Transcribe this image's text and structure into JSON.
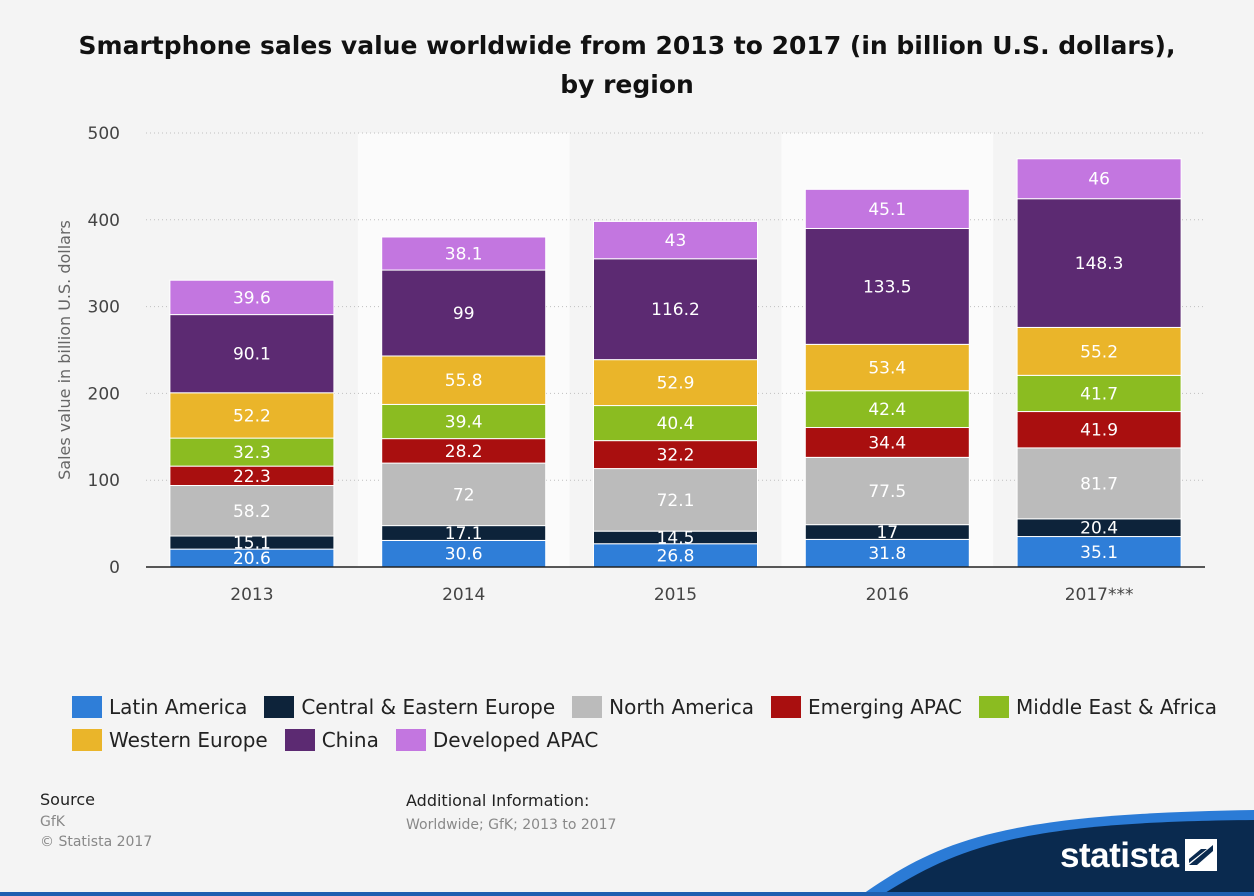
{
  "chart_data": {
    "type": "bar",
    "stacked": true,
    "title": "Smartphone sales value worldwide from 2013 to 2017 (in billion U.S. dollars), by region",
    "xlabel": "",
    "ylabel": "Sales value in billion U.S. dollars",
    "ylim": [
      0,
      500
    ],
    "yticks": [
      0,
      100,
      200,
      300,
      400,
      500
    ],
    "grid": true,
    "legend_position": "bottom",
    "categories": [
      "2013",
      "2014",
      "2015",
      "2016",
      "2017***"
    ],
    "series": [
      {
        "name": "Latin America",
        "color": "#2f7ed8",
        "values": [
          20.6,
          30.6,
          26.8,
          31.8,
          35.1
        ]
      },
      {
        "name": "Central & Eastern Europe",
        "color": "#0d233a",
        "values": [
          15.1,
          17.1,
          14.5,
          17,
          20.4
        ]
      },
      {
        "name": "North America",
        "color": "#bbbbbb",
        "values": [
          58.2,
          72,
          72.1,
          77.5,
          81.7
        ]
      },
      {
        "name": "Emerging APAC",
        "color": "#a90f0f",
        "values": [
          22.3,
          28.2,
          32.2,
          34.4,
          41.9
        ]
      },
      {
        "name": "Middle East & Africa",
        "color": "#8bbc21",
        "values": [
          32.3,
          39.4,
          40.4,
          42.4,
          41.7
        ]
      },
      {
        "name": "Western Europe",
        "color": "#eab52a",
        "values": [
          52.2,
          55.8,
          52.9,
          53.4,
          55.2
        ]
      },
      {
        "name": "China",
        "color": "#5c2a72",
        "values": [
          90.1,
          99,
          116.2,
          133.5,
          148.3
        ]
      },
      {
        "name": "Developed APAC",
        "color": "#c376e0",
        "values": [
          39.6,
          38.1,
          43,
          45.1,
          46
        ]
      }
    ]
  },
  "legend": [
    [
      "Latin America",
      "Central & Eastern Europe",
      "North America",
      "Emerging APAC",
      "Middle East & Africa"
    ],
    [
      "Western Europe",
      "China",
      "Developed APAC"
    ]
  ],
  "source": {
    "title": "Source",
    "name": "GfK",
    "copyright": "© Statista 2017"
  },
  "additional_info": {
    "title": "Additional Information:",
    "text": "Worldwide; GfK; 2013 to 2017"
  },
  "brand": {
    "name": "statista"
  }
}
